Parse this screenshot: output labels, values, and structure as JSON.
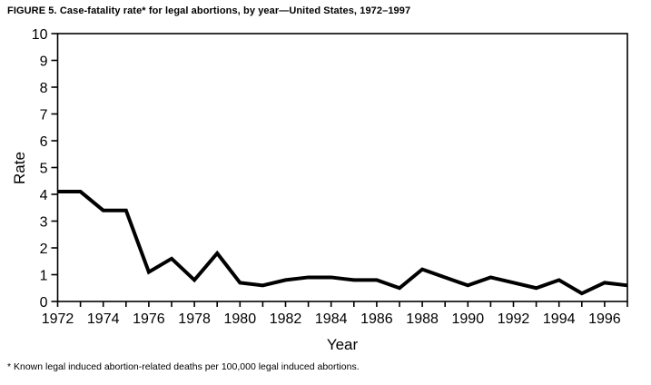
{
  "figure": {
    "title": "FIGURE 5. Case-fatality rate* for legal abortions, by year—United States, 1972–1997",
    "footnote": "* Known legal induced abortion-related deaths per 100,000 legal induced abortions."
  },
  "chart_data": {
    "type": "line",
    "title": "FIGURE 5. Case-fatality rate* for legal abortions, by year—United States, 1972–1997",
    "xlabel": "Year",
    "ylabel": "Rate",
    "x": [
      1972,
      1973,
      1974,
      1975,
      1976,
      1977,
      1978,
      1979,
      1980,
      1981,
      1982,
      1983,
      1984,
      1985,
      1986,
      1987,
      1988,
      1989,
      1990,
      1991,
      1992,
      1993,
      1994,
      1995,
      1996,
      1997
    ],
    "values": [
      4.1,
      4.1,
      3.4,
      3.4,
      1.1,
      1.6,
      0.8,
      1.8,
      0.7,
      0.6,
      0.8,
      0.9,
      0.9,
      0.8,
      0.8,
      0.5,
      1.2,
      0.9,
      0.6,
      0.9,
      0.7,
      0.5,
      0.8,
      0.3,
      0.7,
      0.6
    ],
    "xlim": [
      1972,
      1997
    ],
    "ylim": [
      0,
      10
    ],
    "yticks": [
      0,
      1,
      2,
      3,
      4,
      5,
      6,
      7,
      8,
      9,
      10
    ],
    "xticks_minor_every": 1,
    "xtick_labels": [
      1972,
      1974,
      1976,
      1978,
      1980,
      1982,
      1984,
      1986,
      1988,
      1990,
      1992,
      1994,
      1996
    ],
    "grid": false,
    "legend": "none",
    "line_color": "#000000",
    "axis_color": "#000000",
    "background_color": "#ffffff",
    "line_width": 4
  }
}
